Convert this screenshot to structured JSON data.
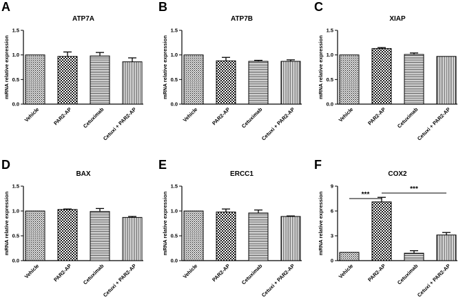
{
  "chart_data": [
    {
      "panel": "A",
      "type": "bar",
      "title": "ATP7A",
      "ylabel": "mRNA relative expression",
      "categories": [
        "Vehicle",
        "PAR2-AP",
        "Cetuximab",
        "Cetuxi + PAR2-AP"
      ],
      "values": [
        1.0,
        0.97,
        0.98,
        0.86
      ],
      "errors": [
        0.0,
        0.09,
        0.07,
        0.08
      ],
      "ylim": [
        0,
        1.5
      ],
      "yticks": [
        "0.0",
        "0.5",
        "1.0",
        "1.5"
      ],
      "ytick_values": [
        0,
        0.5,
        1.0,
        1.5
      ],
      "significance": []
    },
    {
      "panel": "B",
      "type": "bar",
      "title": "ATP7B",
      "ylabel": "mRNA relative expression",
      "categories": [
        "Vehicle",
        "PAR2-AP",
        "Cetuximab",
        "Cetuxi + PAR2-AP"
      ],
      "values": [
        1.0,
        0.88,
        0.87,
        0.87
      ],
      "errors": [
        0.0,
        0.07,
        0.02,
        0.03
      ],
      "ylim": [
        0,
        1.5
      ],
      "yticks": [
        "0.0",
        "0.5",
        "1.0",
        "1.5"
      ],
      "ytick_values": [
        0,
        0.5,
        1.0,
        1.5
      ],
      "significance": []
    },
    {
      "panel": "C",
      "type": "bar",
      "title": "XIAP",
      "ylabel": "mRNA relative expression",
      "categories": [
        "Vehicle",
        "PAR2-AP",
        "Cetuximab",
        "Cetuxi + PAR2-AP"
      ],
      "values": [
        1.0,
        1.13,
        1.01,
        0.97
      ],
      "errors": [
        0.0,
        0.02,
        0.03,
        0.0
      ],
      "ylim": [
        0,
        1.5
      ],
      "yticks": [
        "0.0",
        "0.5",
        "1.0",
        "1.5"
      ],
      "ytick_values": [
        0,
        0.5,
        1.0,
        1.5
      ],
      "significance": []
    },
    {
      "panel": "D",
      "type": "bar",
      "title": "BAX",
      "ylabel": "mRNA relative expression",
      "categories": [
        "Vehicle",
        "PAR2-AP",
        "Cetuximab",
        "Cetuxi + PAR2-AP"
      ],
      "values": [
        1.0,
        1.03,
        0.99,
        0.87
      ],
      "errors": [
        0.0,
        0.01,
        0.06,
        0.02
      ],
      "ylim": [
        0,
        1.5
      ],
      "yticks": [
        "0.0",
        "0.5",
        "1.0",
        "1.5"
      ],
      "ytick_values": [
        0,
        0.5,
        1.0,
        1.5
      ],
      "significance": []
    },
    {
      "panel": "E",
      "type": "bar",
      "title": "ERCC1",
      "ylabel": "mRNA relative expression",
      "categories": [
        "Vehicle",
        "PAR2-AP",
        "Cetuximab",
        "Cetuxi + PAR2-AP"
      ],
      "values": [
        1.0,
        0.98,
        0.96,
        0.89
      ],
      "errors": [
        0.0,
        0.06,
        0.06,
        0.01
      ],
      "ylim": [
        0,
        1.5
      ],
      "yticks": [
        "0.0",
        "0.5",
        "1.0",
        "1.5"
      ],
      "ytick_values": [
        0,
        0.5,
        1.0,
        1.5
      ],
      "significance": []
    },
    {
      "panel": "F",
      "type": "bar",
      "title": "COX2",
      "ylabel": "mRNA relative expression",
      "categories": [
        "Vehicle",
        "PAR2-AP",
        "Cetuximab",
        "Cetuxi + PAR2-AP"
      ],
      "values": [
        1.0,
        7.1,
        0.9,
        3.1
      ],
      "errors": [
        0.0,
        0.55,
        0.3,
        0.3
      ],
      "ylim": [
        0,
        9
      ],
      "yticks": [
        "0",
        "3",
        "6",
        "9"
      ],
      "ytick_values": [
        0,
        3,
        6,
        9
      ],
      "significance": [
        {
          "from": 0,
          "to": 1,
          "label": "***"
        },
        {
          "from": 1,
          "to": 3,
          "label": "***"
        }
      ]
    }
  ]
}
